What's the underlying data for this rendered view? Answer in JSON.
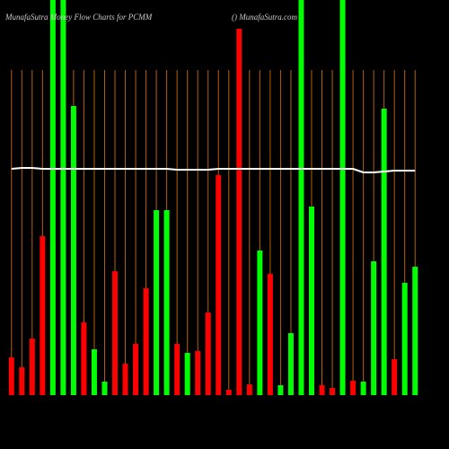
{
  "chart_data": {
    "type": "bar",
    "title": "MunafaSutra Money Flow  Charts for PCMM",
    "subtitle": "() MunafaSutra.com",
    "categories": [
      null,
      null,
      null,
      null,
      null,
      null,
      null,
      null,
      null,
      null,
      null,
      null,
      null,
      null,
      null,
      null,
      null,
      null,
      null,
      null,
      null,
      null,
      null,
      null,
      null,
      null,
      null,
      null,
      null,
      null,
      null,
      null,
      null,
      null,
      null,
      null,
      null,
      null,
      null,
      null
    ],
    "values": [
      42,
      31,
      63,
      177,
      440,
      440,
      322,
      81,
      51,
      15,
      138,
      35,
      57,
      119,
      206,
      206,
      57,
      47,
      49,
      92,
      245,
      6,
      408,
      12,
      161,
      135,
      11,
      69,
      440,
      210,
      11,
      8,
      440,
      16,
      15,
      149,
      319,
      40,
      125,
      143
    ],
    "colors": [
      "#ff0000",
      "#ff0000",
      "#ff0000",
      "#ff0000",
      "#00ff00",
      "#00ff00",
      "#00ff00",
      "#ff0000",
      "#00ff00",
      "#00ff00",
      "#ff0000",
      "#ff0000",
      "#ff0000",
      "#ff0000",
      "#00ff00",
      "#00ff00",
      "#ff0000",
      "#00ff00",
      "#ff0000",
      "#ff0000",
      "#ff0000",
      "#ff0000",
      "#ff0000",
      "#ff0000",
      "#00ff00",
      "#ff0000",
      "#00ff00",
      "#00ff00",
      "#00ff00",
      "#00ff00",
      "#ff0000",
      "#ff0000",
      "#00ff00",
      "#ff0000",
      "#00ff00",
      "#00ff00",
      "#00ff00",
      "#ff0000",
      "#00ff00",
      "#00ff00"
    ],
    "line": {
      "color": "#ffffff",
      "values": [
        252,
        253,
        253,
        252,
        252,
        252,
        252,
        252,
        252,
        252,
        252,
        252,
        252,
        252,
        252,
        252,
        251,
        251,
        251,
        251,
        252,
        252,
        252,
        252,
        252,
        252,
        252,
        252,
        252,
        252,
        252,
        252,
        252,
        252,
        248,
        248,
        249,
        250,
        250,
        250
      ]
    },
    "ylim": [
      0,
      440
    ],
    "grid": true,
    "grid_color": "#b8600a"
  }
}
